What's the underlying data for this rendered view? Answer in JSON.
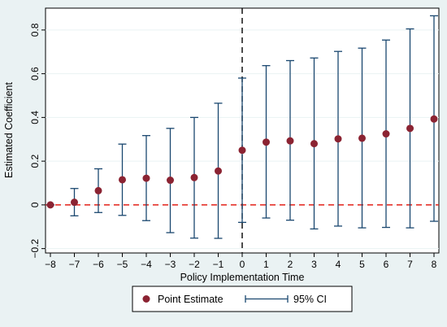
{
  "chart_data": {
    "type": "scatter",
    "xlabel": "Policy Implementation Time",
    "ylabel": "Estimated Coefficient",
    "xlim": [
      -8,
      8
    ],
    "ylim": [
      -0.22,
      0.9
    ],
    "x_ticks": [
      -8,
      -7,
      -6,
      -5,
      -4,
      -3,
      -2,
      -1,
      0,
      1,
      2,
      3,
      4,
      5,
      6,
      7,
      8
    ],
    "x_tick_labels": [
      "−8",
      "−7",
      "−6",
      "−5",
      "−4",
      "−3",
      "−2",
      "−1",
      "0",
      "1",
      "2",
      "3",
      "4",
      "5",
      "6",
      "7",
      "8"
    ],
    "y_ticks": [
      -0.2,
      0,
      0.2,
      0.4,
      0.6,
      0.8
    ],
    "y_tick_labels": [
      "−0.2",
      "0",
      "0.2",
      "0.4",
      "0.6",
      "0.8"
    ],
    "grid": "horizontal",
    "reference_lines": [
      {
        "axis": "y",
        "value": 0,
        "style": "dashed",
        "color": "#e32119"
      },
      {
        "axis": "x",
        "value": 0,
        "style": "dashed",
        "color": "#000000"
      }
    ],
    "series": [
      {
        "name": "Point Estimate",
        "kind": "point",
        "color": "#8b2332",
        "x": [
          -8,
          -7,
          -6,
          -5,
          -4,
          -3,
          -2,
          -1,
          0,
          1,
          2,
          3,
          4,
          5,
          6,
          7,
          8
        ],
        "y": [
          0.0,
          0.012,
          0.065,
          0.115,
          0.122,
          0.113,
          0.125,
          0.155,
          0.25,
          0.287,
          0.293,
          0.28,
          0.302,
          0.305,
          0.325,
          0.35,
          0.393
        ]
      },
      {
        "name": "95% CI",
        "kind": "errorbar",
        "color": "#1a476f",
        "x": [
          -8,
          -7,
          -6,
          -5,
          -4,
          -3,
          -2,
          -1,
          0,
          1,
          2,
          3,
          4,
          5,
          6,
          7,
          8
        ],
        "lower": [
          0.0,
          -0.05,
          -0.035,
          -0.048,
          -0.072,
          -0.127,
          -0.152,
          -0.153,
          -0.08,
          -0.06,
          -0.07,
          -0.11,
          -0.097,
          -0.105,
          -0.103,
          -0.105,
          -0.075
        ],
        "upper": [
          0.0,
          0.075,
          0.165,
          0.278,
          0.317,
          0.35,
          0.4,
          0.465,
          0.58,
          0.637,
          0.66,
          0.672,
          0.702,
          0.717,
          0.754,
          0.805,
          0.865
        ]
      }
    ],
    "legend": {
      "position": "bottom",
      "entries": [
        "Point Estimate",
        "95% CI"
      ]
    }
  },
  "colors": {
    "frame_background": "#eaf2f3",
    "plot_background": "#ffffff",
    "gridline": "#eaf2f3",
    "point": "#8b2332",
    "ci": "#1a476f",
    "zero_line": "#e32119",
    "vline": "#000000"
  }
}
